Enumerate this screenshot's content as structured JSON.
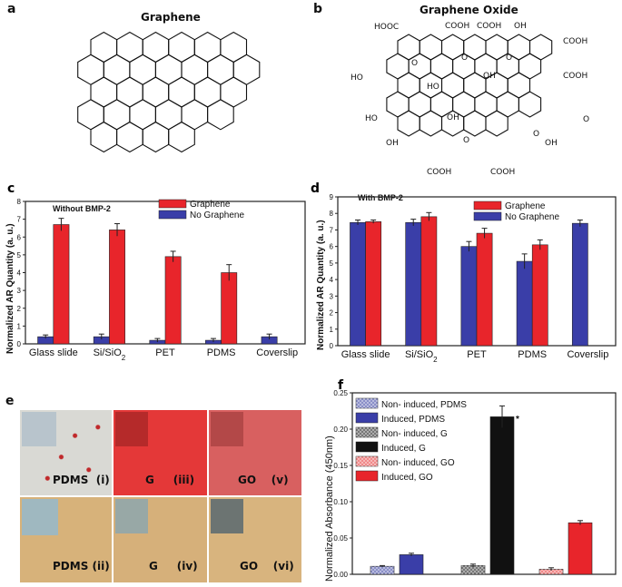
{
  "colors": {
    "red": "#e8252b",
    "blue": "#3a3ea8",
    "black": "#111111"
  },
  "panel_a": {
    "letter": "a",
    "title": "Graphene"
  },
  "panel_b": {
    "letter": "b",
    "title": "Graphene Oxide",
    "labels": [
      "HOOC",
      "COOH",
      "COOH",
      "OH",
      "COOH",
      "HO",
      "OH",
      "COOH",
      "HO",
      "OH",
      "HO",
      "OH",
      "COOH",
      "COOH",
      "OH"
    ],
    "atom_o": "O"
  },
  "panel_e": {
    "letter": "e",
    "labels": [
      "PDMS",
      "(i)",
      "G",
      "(iii)",
      "GO",
      "(v)",
      "PDMS",
      "(ii)",
      "G",
      "(iv)",
      "GO",
      "(vi)"
    ]
  },
  "chart_data": [
    {
      "id": "c",
      "letter": "c",
      "type": "bar",
      "note": "Without BMP-2",
      "ylabel": "Normalized AR Quantity (a. u.)",
      "ylim": [
        0,
        8
      ],
      "yticks": [
        0,
        1,
        2,
        3,
        4,
        5,
        6,
        7,
        8
      ],
      "categories": [
        "Glass slide",
        "Si/SiO",
        "PET",
        "PDMS",
        "Coverslip"
      ],
      "category_subscripts": [
        "",
        "2",
        "",
        "",
        ""
      ],
      "series": [
        {
          "name": "No Graphene",
          "color": "#3a3ea8",
          "values": [
            0.4,
            0.4,
            0.2,
            0.2,
            0.4
          ],
          "errors": [
            0.1,
            0.15,
            0.1,
            0.1,
            0.15
          ]
        },
        {
          "name": "Graphene",
          "color": "#e8252b",
          "values": [
            6.7,
            6.4,
            4.9,
            4.0,
            null
          ],
          "errors": [
            0.35,
            0.35,
            0.3,
            0.45,
            null
          ]
        }
      ],
      "legend": [
        "Graphene",
        "No Graphene"
      ]
    },
    {
      "id": "d",
      "letter": "d",
      "type": "bar",
      "note": "With BMP-2",
      "ylabel": "Normalized AR Quantity (a. u.)",
      "ylim": [
        0,
        9
      ],
      "yticks": [
        0,
        1,
        2,
        3,
        4,
        5,
        6,
        7,
        8,
        9
      ],
      "categories": [
        "Glass slide",
        "Si/SiO",
        "PET",
        "PDMS",
        "Coverslip"
      ],
      "category_subscripts": [
        "",
        "2",
        "",
        "",
        ""
      ],
      "series": [
        {
          "name": "No Graphene",
          "color": "#3a3ea8",
          "values": [
            7.45,
            7.45,
            6.0,
            5.1,
            7.4
          ],
          "errors": [
            0.15,
            0.2,
            0.3,
            0.45,
            0.2
          ]
        },
        {
          "name": "Graphene",
          "color": "#e8252b",
          "values": [
            7.5,
            7.8,
            6.8,
            6.1,
            null
          ],
          "errors": [
            0.1,
            0.25,
            0.3,
            0.3,
            null
          ]
        }
      ],
      "legend": [
        "Graphene",
        "No Graphene"
      ]
    },
    {
      "id": "f",
      "letter": "f",
      "type": "bar",
      "ylabel": "Normalized Absorbance (450nm)",
      "ylim": [
        0,
        0.25
      ],
      "yticks": [
        "0.00",
        "0.05",
        "0.10",
        "0.15",
        "0.20",
        "0.25"
      ],
      "groups": [
        "PDMS",
        "G",
        "GO"
      ],
      "series": [
        {
          "name": "Non- induced, PDMS",
          "value": 0.011,
          "error": 0.001,
          "color": "#8a8fc8",
          "hatch": true
        },
        {
          "name": "Induced, PDMS",
          "value": 0.027,
          "error": 0.002,
          "color": "#3a3ea8",
          "hatch": false
        },
        {
          "name": "Non- induced, G",
          "value": 0.012,
          "error": 0.002,
          "color": "#777777",
          "hatch": true
        },
        {
          "name": "Induced, G",
          "value": 0.217,
          "error": 0.015,
          "color": "#111111",
          "hatch": false
        },
        {
          "name": "Non- induced, GO",
          "value": 0.007,
          "error": 0.002,
          "color": "#f08a8a",
          "hatch": true
        },
        {
          "name": "Induced, GO",
          "value": 0.071,
          "error": 0.003,
          "color": "#e8252b",
          "hatch": false
        }
      ],
      "annotation": "*"
    }
  ]
}
